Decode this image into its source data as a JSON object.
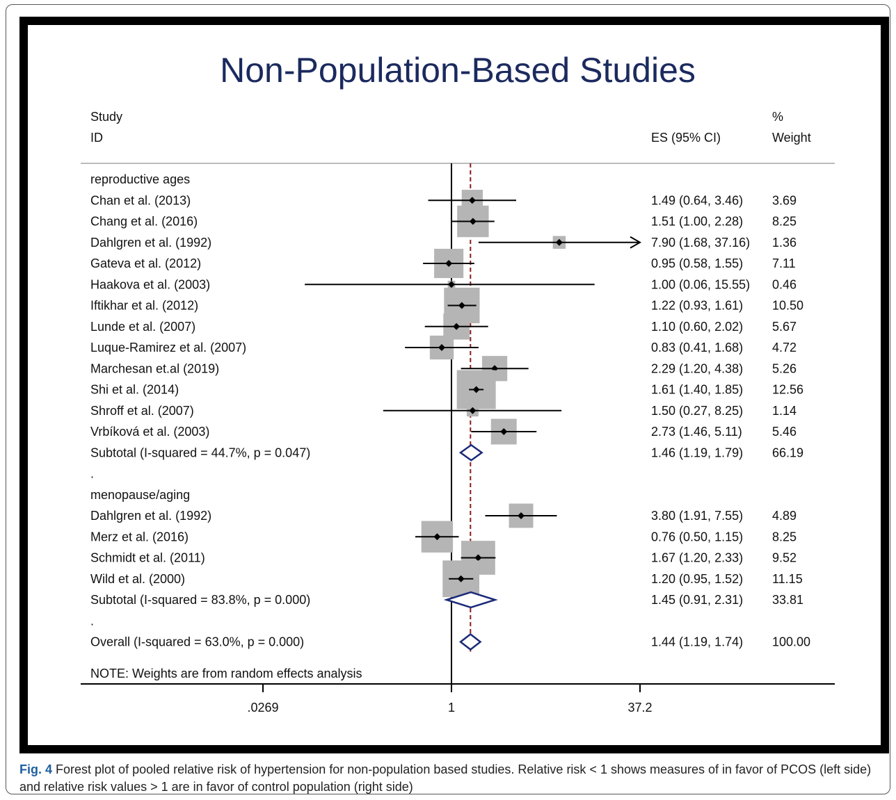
{
  "title": "Non-Population-Based Studies",
  "caption": {
    "label": "Fig. 4",
    "text": " Forest plot of pooled relative risk of hypertension for non-population based studies. Relative risk < 1 shows measures of in favor of PCOS (left side) and relative risk values > 1 are in favor of control population (right side)"
  },
  "chart_data": {
    "type": "forest",
    "title": "Non-Population-Based Studies",
    "x_scale": "log",
    "xlim": [
      0.0269,
      37.2
    ],
    "x_ticks": [
      ".0269",
      "1",
      "37.2"
    ],
    "reference_line": 1,
    "pooled_line": 1.44,
    "headers": {
      "study_line1": "Study",
      "study_line2": "ID",
      "es": "ES (95% CI)",
      "weight_line1": "%",
      "weight_line2": "Weight"
    },
    "rows": [
      {
        "type": "group",
        "label": "reproductive ages"
      },
      {
        "type": "study",
        "label": "Chan et al. (2013)",
        "es": 1.49,
        "lo": 0.64,
        "hi": 3.46,
        "es_text": "1.49 (0.64, 3.46)",
        "weight": "3.69"
      },
      {
        "type": "study",
        "label": "Chang et al. (2016)",
        "es": 1.51,
        "lo": 1.0,
        "hi": 2.28,
        "es_text": "1.51 (1.00, 2.28)",
        "weight": "8.25"
      },
      {
        "type": "study",
        "label": "Dahlgren et al. (1992)",
        "es": 7.9,
        "lo": 1.68,
        "hi": 37.16,
        "es_text": "7.90 (1.68, 37.16)",
        "weight": "1.36",
        "arrow": true
      },
      {
        "type": "study",
        "label": "Gateva et al. (2012)",
        "es": 0.95,
        "lo": 0.58,
        "hi": 1.55,
        "es_text": "0.95 (0.58, 1.55)",
        "weight": "7.11"
      },
      {
        "type": "study",
        "label": "Haakova et al. (2003)",
        "es": 1.0,
        "lo": 0.06,
        "hi": 15.55,
        "es_text": "1.00 (0.06, 15.55)",
        "weight": "0.46"
      },
      {
        "type": "study",
        "label": "Iftikhar et al. (2012)",
        "es": 1.22,
        "lo": 0.93,
        "hi": 1.61,
        "es_text": "1.22 (0.93, 1.61)",
        "weight": "10.50"
      },
      {
        "type": "study",
        "label": "Lunde et al. (2007)",
        "es": 1.1,
        "lo": 0.6,
        "hi": 2.02,
        "es_text": "1.10 (0.60, 2.02)",
        "weight": "5.67"
      },
      {
        "type": "study",
        "label": "Luque-Ramirez et al. (2007)",
        "es": 0.83,
        "lo": 0.41,
        "hi": 1.68,
        "es_text": "0.83 (0.41, 1.68)",
        "weight": "4.72"
      },
      {
        "type": "study",
        "label": "Marchesan et.al (2019)",
        "es": 2.29,
        "lo": 1.2,
        "hi": 4.38,
        "es_text": "2.29 (1.20, 4.38)",
        "weight": "5.26"
      },
      {
        "type": "study",
        "label": "Shi et al. (2014)",
        "es": 1.61,
        "lo": 1.4,
        "hi": 1.85,
        "es_text": "1.61 (1.40, 1.85)",
        "weight": "12.56"
      },
      {
        "type": "study",
        "label": "Shroff et al. (2007)",
        "es": 1.5,
        "lo": 0.27,
        "hi": 8.25,
        "es_text": "1.50 (0.27, 8.25)",
        "weight": "1.14"
      },
      {
        "type": "study",
        "label": "Vrbíková et al. (2003)",
        "es": 2.73,
        "lo": 1.46,
        "hi": 5.11,
        "es_text": "2.73 (1.46, 5.11)",
        "weight": "5.46"
      },
      {
        "type": "subtotal",
        "label": "Subtotal  (I-squared = 44.7%, p = 0.047)",
        "es": 1.46,
        "lo": 1.19,
        "hi": 1.79,
        "es_text": "1.46 (1.19, 1.79)",
        "weight": "66.19"
      },
      {
        "type": "blank",
        "label": "."
      },
      {
        "type": "group",
        "label": "menopause/aging"
      },
      {
        "type": "study",
        "label": "Dahlgren et al. (1992)",
        "es": 3.8,
        "lo": 1.91,
        "hi": 7.55,
        "es_text": "3.80 (1.91, 7.55)",
        "weight": "4.89"
      },
      {
        "type": "study",
        "label": "Merz et al. (2016)",
        "es": 0.76,
        "lo": 0.5,
        "hi": 1.15,
        "es_text": "0.76 (0.50, 1.15)",
        "weight": "8.25"
      },
      {
        "type": "study",
        "label": "Schmidt et al. (2011)",
        "es": 1.67,
        "lo": 1.2,
        "hi": 2.33,
        "es_text": "1.67 (1.20, 2.33)",
        "weight": "9.52"
      },
      {
        "type": "study",
        "label": "Wild et al. (2000)",
        "es": 1.2,
        "lo": 0.95,
        "hi": 1.52,
        "es_text": "1.20 (0.95, 1.52)",
        "weight": "11.15"
      },
      {
        "type": "subtotal",
        "label": "Subtotal  (I-squared = 83.8%, p = 0.000)",
        "es": 1.45,
        "lo": 0.91,
        "hi": 2.31,
        "es_text": "1.45 (0.91, 2.31)",
        "weight": "33.81"
      },
      {
        "type": "blank",
        "label": "."
      },
      {
        "type": "overall",
        "label": "Overall  (I-squared = 63.0%, p = 0.000)",
        "es": 1.44,
        "lo": 1.19,
        "hi": 1.74,
        "es_text": "1.44 (1.19, 1.74)",
        "weight": "100.00"
      }
    ],
    "note": "NOTE: Weights are from random effects analysis"
  },
  "colors": {
    "title": "#1b2a5e",
    "box": "#b5b5b5",
    "diamond": "#1b2a78",
    "pooled_line": "#8b1a1a",
    "caption_label": "#1f5fa0"
  }
}
